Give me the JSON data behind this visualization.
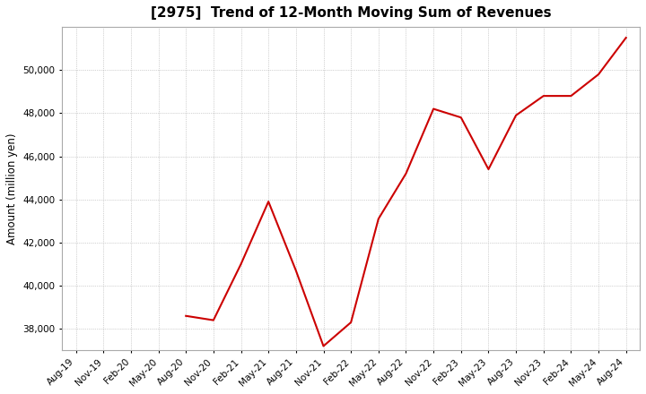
{
  "title": "[2975]  Trend of 12-Month Moving Sum of Revenues",
  "ylabel": "Amount (million yen)",
  "line_color": "#cc0000",
  "background_color": "#ffffff",
  "plot_bg_color": "#ffffff",
  "grid_color": "#aaaaaa",
  "ylim": [
    37000,
    52000
  ],
  "yticks": [
    38000,
    40000,
    42000,
    44000,
    46000,
    48000,
    50000
  ],
  "x_labels": [
    "Aug-19",
    "Nov-19",
    "Feb-20",
    "May-20",
    "Aug-20",
    "Nov-20",
    "Feb-21",
    "May-21",
    "Aug-21",
    "Nov-21",
    "Feb-22",
    "May-22",
    "Aug-22",
    "Nov-22",
    "Feb-23",
    "May-23",
    "Aug-23",
    "Nov-23",
    "Feb-24",
    "May-24",
    "Aug-24"
  ],
  "data": [
    [
      "Aug-19",
      null
    ],
    [
      "Nov-19",
      null
    ],
    [
      "Feb-20",
      null
    ],
    [
      "May-20",
      null
    ],
    [
      "Aug-20",
      38600
    ],
    [
      "Nov-20",
      38400
    ],
    [
      "Feb-21",
      41000
    ],
    [
      "May-21",
      43900
    ],
    [
      "Aug-21",
      40700
    ],
    [
      "Nov-21",
      37200
    ],
    [
      "Feb-22",
      38300
    ],
    [
      "May-22",
      43100
    ],
    [
      "Aug-22",
      45200
    ],
    [
      "Nov-22",
      48200
    ],
    [
      "Feb-23",
      47800
    ],
    [
      "May-23",
      45400
    ],
    [
      "Aug-23",
      47900
    ],
    [
      "Nov-23",
      48800
    ],
    [
      "Feb-24",
      48800
    ],
    [
      "May-24",
      49800
    ],
    [
      "Aug-24",
      51500
    ]
  ]
}
